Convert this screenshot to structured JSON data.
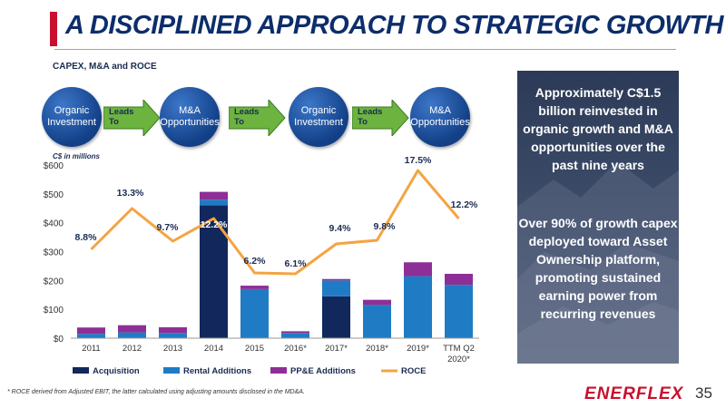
{
  "header": {
    "title": "A DISCIPLINED APPROACH TO STRATEGIC GROWTH",
    "subtitle": "CAPEX, M&A and ROCE"
  },
  "flow": {
    "circles": [
      "Organic\nInvestment",
      "M&A\nOpportunities",
      "Organic\nInvestment",
      "M&A\nOpportunities"
    ],
    "arrow_label": "Leads\nTo"
  },
  "unit_label": "C$ in millions",
  "side_panel": {
    "text1": "Approximately C$1.5 billion reinvested in organic growth and M&A opportunities over the past nine years",
    "text2": "Over 90% of growth capex deployed toward Asset Ownership platform, promoting sustained earning power from recurring revenues"
  },
  "footnote": "* ROCE derived from Adjusted EBIT, the latter calculated using adjusting amounts disclosed in the MD&A.",
  "logo": "ENERFLEX",
  "page_number": "35",
  "colors": {
    "acquisition": "#12285c",
    "rental": "#1f7cc4",
    "ppe": "#8e2f97",
    "roce": "#f4a442",
    "title": "#0d2d6b",
    "accent": "#c8102e"
  },
  "chart_data": {
    "type": "bar",
    "categories": [
      "2011",
      "2012",
      "2013",
      "2014",
      "2015",
      "2016*",
      "2017*",
      "2018*",
      "2019*",
      "TTM Q2\n2020*"
    ],
    "series": [
      {
        "name": "Acquisition",
        "values": [
          0,
          0,
          0,
          460,
          0,
          0,
          145,
          0,
          0,
          0
        ]
      },
      {
        "name": "Rental Additions",
        "values": [
          15,
          20,
          18,
          20,
          170,
          18,
          55,
          115,
          215,
          185
        ]
      },
      {
        "name": "PP&E Additions",
        "values": [
          22,
          25,
          20,
          27,
          12,
          6,
          5,
          18,
          48,
          38
        ]
      }
    ],
    "line": {
      "name": "ROCE",
      "values": [
        8.8,
        13.3,
        9.7,
        12.2,
        6.2,
        6.1,
        9.4,
        9.8,
        17.5,
        12.2
      ],
      "labels": [
        "8.8%",
        "13.3%",
        "9.7%",
        "12.2%",
        "6.2%",
        "6.1%",
        "9.4%",
        "9.8%",
        "17.5%",
        "12.2%"
      ]
    },
    "y_ticks": [
      "$0",
      "$100",
      "$200",
      "$300",
      "$400",
      "$500",
      "$600"
    ],
    "ylim": [
      0,
      600
    ],
    "stacked": true,
    "legend": "bottom"
  }
}
